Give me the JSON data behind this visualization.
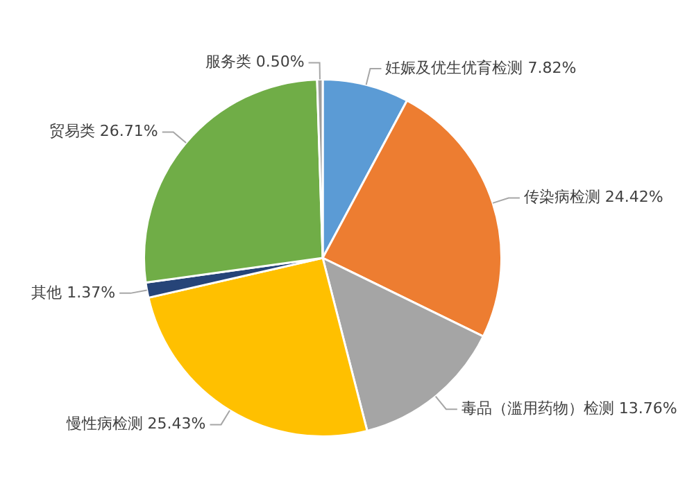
{
  "chart_data": {
    "type": "pie",
    "categories": [
      "妊娠及优生优育检测",
      "传染病检测",
      "毒品（滥用药物）检测",
      "慢性病检测",
      "其他",
      "贸易类",
      "服务类"
    ],
    "values": [
      7.82,
      24.42,
      13.76,
      25.43,
      1.37,
      26.71,
      0.5
    ],
    "value_labels": [
      "7.82%",
      "24.42%",
      "13.76%",
      "25.43%",
      "1.37%",
      "26.71%",
      "0.50%"
    ],
    "colors": [
      "#5b9bd5",
      "#ed7d31",
      "#a5a5a5",
      "#ffc000",
      "#264478",
      "#70ad47",
      "#9e9e9e"
    ],
    "legend": false
  }
}
